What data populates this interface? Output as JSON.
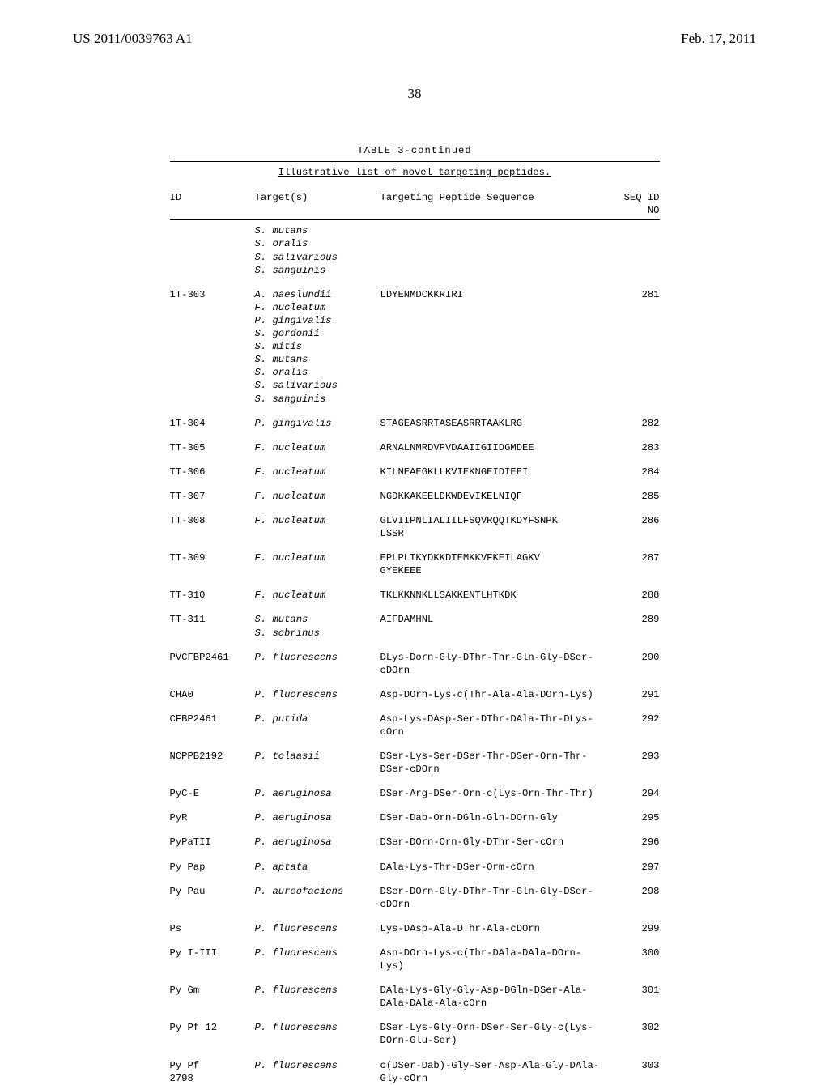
{
  "header": {
    "left": "US 2011/0039763 A1",
    "right": "Feb. 17, 2011"
  },
  "page_number": "38",
  "table": {
    "title": "TABLE 3-continued",
    "caption": "Illustrative list of novel targeting peptides.",
    "columns": {
      "id": "ID",
      "target": "Target(s)",
      "sequence": "Targeting Peptide Sequence",
      "seqid_top": "SEQ ID",
      "seqid_bot": "NO"
    },
    "rows": [
      {
        "id": "",
        "targets": [
          "S. mutans",
          "S. oralis",
          "S. salivarious",
          "S. sanguinis"
        ],
        "seq": "",
        "seqid": ""
      },
      {
        "id": "1T-303",
        "targets": [
          "A. naeslundii",
          "F. nucleatum",
          "P. gingivalis",
          "S. gordonii",
          "S. mitis",
          "S. mutans",
          "S. oralis",
          "S. salivarious",
          "S. sanguinis"
        ],
        "seq": "LDYENMDCKKRIRI",
        "seqid": "281"
      },
      {
        "id": "1T-304",
        "targets": [
          "P. gingivalis"
        ],
        "seq": "STAGEASRRTASEASRRTAAKLRG",
        "seqid": "282"
      },
      {
        "id": "TT-305",
        "targets": [
          "F. nucleatum"
        ],
        "seq": "ARNALNMRDVPVDAAIIGIIDGMDEE",
        "seqid": "283"
      },
      {
        "id": "TT-306",
        "targets": [
          "F. nucleatum"
        ],
        "seq": "KILNEAEGKLLKVIEKNGEIDIEEI",
        "seqid": "284"
      },
      {
        "id": "TT-307",
        "targets": [
          "F. nucleatum"
        ],
        "seq": "NGDKKAKEELDKWDEVIKELNIQF",
        "seqid": "285"
      },
      {
        "id": "TT-308",
        "targets": [
          "F. nucleatum"
        ],
        "seq": "GLVIIPNLIALIILFSQVRQQTKDYFSNPK\nLSSR",
        "seqid": "286"
      },
      {
        "id": "TT-309",
        "targets": [
          "F. nucleatum"
        ],
        "seq": "EPLPLTKYDKKDTEMKKVFKEILAGKV\nGYEKEEE",
        "seqid": "287"
      },
      {
        "id": "TT-310",
        "targets": [
          "F. nucleatum"
        ],
        "seq": "TKLKKNNKLLSAKKENTLHTKDK",
        "seqid": "288"
      },
      {
        "id": "TT-311",
        "targets": [
          "S. mutans",
          "S. sobrinus"
        ],
        "seq": "AIFDAMHNL",
        "seqid": "289"
      },
      {
        "id": "PVCFBP2461",
        "targets": [
          "P. fluorescens"
        ],
        "seq": "DLys-Dorn-Gly-DThr-Thr-Gln-Gly-DSer-\ncDOrn",
        "seqid": "290"
      },
      {
        "id": "CHA0",
        "targets": [
          "P. fluorescens"
        ],
        "seq": "Asp-DOrn-Lys-c(Thr-Ala-Ala-DOrn-Lys)",
        "seqid": "291"
      },
      {
        "id": "CFBP2461",
        "targets": [
          "P. putida"
        ],
        "seq": "Asp-Lys-DAsp-Ser-DThr-DAla-Thr-DLys-\ncOrn",
        "seqid": "292"
      },
      {
        "id": "NCPPB2192",
        "targets": [
          "P. tolaasii"
        ],
        "seq": "DSer-Lys-Ser-DSer-Thr-DSer-Orn-Thr-\nDSer-cDOrn",
        "seqid": "293"
      },
      {
        "id": "PyC-E",
        "targets": [
          "P. aeruginosa"
        ],
        "seq": "DSer-Arg-DSer-Orn-c(Lys-Orn-Thr-Thr)",
        "seqid": "294"
      },
      {
        "id": "PyR",
        "targets": [
          "P. aeruginosa"
        ],
        "seq": "DSer-Dab-Orn-DGln-Gln-DOrn-Gly",
        "seqid": "295"
      },
      {
        "id": "PyPaTII",
        "targets": [
          "P. aeruginosa"
        ],
        "seq": "DSer-DOrn-Orn-Gly-DThr-Ser-cOrn",
        "seqid": "296"
      },
      {
        "id": "Py Pap",
        "targets": [
          "P. aptata"
        ],
        "seq": "DAla-Lys-Thr-DSer-Orm-cOrn",
        "seqid": "297"
      },
      {
        "id": "Py Pau",
        "targets": [
          "P. aureofaciens"
        ],
        "seq": "DSer-DOrn-Gly-DThr-Thr-Gln-Gly-DSer-\ncDOrn",
        "seqid": "298"
      },
      {
        "id": "Ps",
        "targets": [
          "P. fluorescens"
        ],
        "seq": "Lys-DAsp-Ala-DThr-Ala-cDOrn",
        "seqid": "299"
      },
      {
        "id": "Py I-III",
        "targets": [
          "P. fluorescens"
        ],
        "seq": "Asn-DOrn-Lys-c(Thr-DAla-DAla-DOrn-\nLys)",
        "seqid": "300"
      },
      {
        "id": "Py Gm",
        "targets": [
          "P. fluorescens"
        ],
        "seq": "DAla-Lys-Gly-Gly-Asp-DGln-DSer-Ala-\nDAla-DAla-Ala-cOrn",
        "seqid": "301"
      },
      {
        "id": "Py Pf 12",
        "targets": [
          "P. fluorescens"
        ],
        "seq": "DSer-Lys-Gly-Orn-DSer-Ser-Gly-c(Lys-\nDOrn-Glu-Ser)",
        "seqid": "302"
      },
      {
        "id": "Py Pf\n2798",
        "targets": [
          "P. fluorescens"
        ],
        "seq": "c(DSer-Dab)-Gly-Ser-Asp-Ala-Gly-DAla-\nGly-cOrn",
        "seqid": "303"
      }
    ]
  }
}
